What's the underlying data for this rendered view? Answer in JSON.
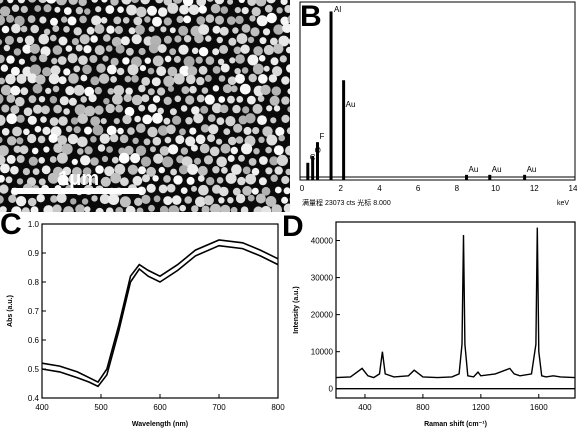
{
  "panels": {
    "a": {
      "label": "",
      "scale_text": "1μm"
    },
    "b": {
      "label": "B"
    },
    "c": {
      "label": "C"
    },
    "d": {
      "label": "D"
    }
  },
  "chart_data": [
    {
      "panel": "B",
      "type": "bar",
      "xlabel": "keV",
      "footer_text": "满量程 23073 cts 光标 8.000",
      "xlim": [
        0,
        14
      ],
      "xticks": [
        0,
        2,
        4,
        6,
        8,
        10,
        12,
        14
      ],
      "ylim": [
        0,
        100
      ],
      "peaks": [
        {
          "x": 0.3,
          "y": 10,
          "label": "C"
        },
        {
          "x": 0.55,
          "y": 14,
          "label": "O"
        },
        {
          "x": 0.8,
          "y": 22,
          "label": "F"
        },
        {
          "x": 1.5,
          "y": 98,
          "label": "Al"
        },
        {
          "x": 2.15,
          "y": 58,
          "label": "Au"
        },
        {
          "x": 8.5,
          "y": 3,
          "label": "Au"
        },
        {
          "x": 9.7,
          "y": 3,
          "label": "Au"
        },
        {
          "x": 11.5,
          "y": 3,
          "label": "Au"
        }
      ]
    },
    {
      "panel": "C",
      "type": "line",
      "xlabel": "Wavelength (nm)",
      "ylabel": "Abs (a.u.)",
      "xlim": [
        400,
        800
      ],
      "ylim": [
        0.4,
        1.0
      ],
      "xticks": [
        400,
        500,
        600,
        700,
        800
      ],
      "yticks": [
        0.4,
        0.5,
        0.6,
        0.7,
        0.8,
        0.9,
        1.0
      ],
      "ytick_labels": [
        "0.4",
        "0.5",
        "0.6",
        "0.7",
        "0.8",
        "0.9",
        "1.0"
      ],
      "series": [
        {
          "x": [
            400,
            430,
            460,
            480,
            495,
            510,
            530,
            550,
            565,
            580,
            600,
            630,
            660,
            700,
            740,
            770,
            800
          ],
          "y": [
            0.52,
            0.51,
            0.49,
            0.47,
            0.455,
            0.5,
            0.65,
            0.82,
            0.86,
            0.84,
            0.82,
            0.86,
            0.91,
            0.945,
            0.935,
            0.91,
            0.88
          ]
        },
        {
          "x": [
            400,
            430,
            460,
            480,
            495,
            510,
            530,
            550,
            565,
            580,
            600,
            630,
            660,
            700,
            740,
            770,
            800
          ],
          "y": [
            0.5,
            0.49,
            0.47,
            0.455,
            0.44,
            0.48,
            0.63,
            0.8,
            0.845,
            0.82,
            0.8,
            0.84,
            0.89,
            0.925,
            0.915,
            0.89,
            0.86
          ]
        }
      ]
    },
    {
      "panel": "D",
      "type": "line",
      "xlabel": "Raman shift (cm⁻¹)",
      "ylabel": "Intensity (a.u.)",
      "xlim": [
        200,
        1850
      ],
      "ylim": [
        -2500,
        45000
      ],
      "xticks": [
        400,
        800,
        1200,
        1600
      ],
      "yticks": [
        0,
        10000,
        20000,
        30000,
        40000
      ],
      "series": [
        {
          "x": [
            200,
            300,
            380,
            420,
            460,
            500,
            520,
            540,
            600,
            700,
            740,
            800,
            900,
            1000,
            1050,
            1070,
            1080,
            1090,
            1110,
            1150,
            1180,
            1200,
            1300,
            1400,
            1430,
            1470,
            1550,
            1580,
            1590,
            1600,
            1620,
            1650,
            1700,
            1750,
            1850
          ],
          "y": [
            3000,
            3200,
            5500,
            3500,
            3000,
            4000,
            10000,
            4000,
            3200,
            3500,
            5000,
            3200,
            3000,
            3200,
            4000,
            12000,
            41500,
            12000,
            3500,
            3200,
            4500,
            3500,
            4000,
            5500,
            4000,
            3500,
            4000,
            12000,
            43500,
            10000,
            3500,
            3200,
            3500,
            3200,
            3000
          ]
        },
        {
          "x": [
            200,
            400,
            600,
            800,
            1000,
            1200,
            1400,
            1600,
            1850
          ],
          "y": [
            0,
            0,
            0,
            0,
            0,
            0,
            0,
            0,
            0
          ]
        }
      ]
    }
  ]
}
